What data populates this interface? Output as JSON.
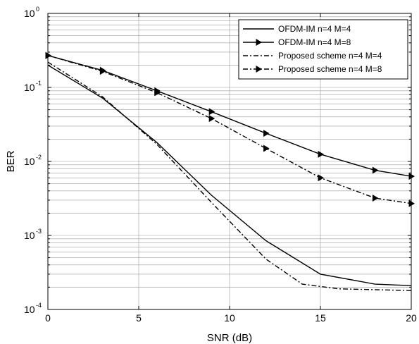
{
  "chart_data": {
    "type": "line",
    "title": "",
    "xlabel": "SNR (dB)",
    "ylabel": "BER",
    "xscale": "linear",
    "yscale": "log",
    "xlim": [
      0,
      20
    ],
    "ylim": [
      0.0001,
      1
    ],
    "x_ticks": [
      0,
      5,
      10,
      15,
      20
    ],
    "x_tick_labels": [
      "0",
      "5",
      "10",
      "15",
      "20"
    ],
    "y_ticks": [
      0.0001,
      0.001,
      0.01,
      0.1,
      1
    ],
    "y_tick_labels": [
      {
        "base": "10",
        "exp": "-4"
      },
      {
        "base": "10",
        "exp": "-3"
      },
      {
        "base": "10",
        "exp": "-2"
      },
      {
        "base": "10",
        "exp": "-1"
      },
      {
        "base": "10",
        "exp": "0"
      }
    ],
    "grid": true,
    "legend_position": "top-right",
    "series": [
      {
        "name": "OFDM-IM   n=4 M=4",
        "line_style": "solid",
        "marker": "none",
        "color": "#000000",
        "x": [
          0,
          3,
          6,
          9,
          12,
          15,
          18,
          20
        ],
        "y": [
          0.2,
          0.072,
          0.018,
          0.0035,
          0.00085,
          0.0003,
          0.00022,
          0.00021
        ]
      },
      {
        "name": "OFDM-IM   n=4 M=8",
        "line_style": "solid",
        "marker": "triangle-right",
        "color": "#000000",
        "x": [
          0,
          3,
          6,
          9,
          12,
          15,
          18,
          20
        ],
        "y": [
          0.27,
          0.17,
          0.09,
          0.047,
          0.024,
          0.0125,
          0.0076,
          0.0063
        ]
      },
      {
        "name": "Proposed scheme n=4 M=4",
        "line_style": "dash-dot",
        "marker": "none",
        "color": "#000000",
        "x": [
          0,
          3,
          6,
          9,
          12,
          14,
          16,
          20
        ],
        "y": [
          0.22,
          0.075,
          0.017,
          0.0028,
          0.00048,
          0.00022,
          0.00019,
          0.00018
        ]
      },
      {
        "name": "Proposed scheme n=4 M=8",
        "line_style": "dash-dot",
        "marker": "triangle-right",
        "color": "#000000",
        "x": [
          0,
          3,
          6,
          9,
          12,
          15,
          18,
          20
        ],
        "y": [
          0.27,
          0.165,
          0.085,
          0.038,
          0.015,
          0.006,
          0.0032,
          0.0027
        ]
      }
    ]
  }
}
